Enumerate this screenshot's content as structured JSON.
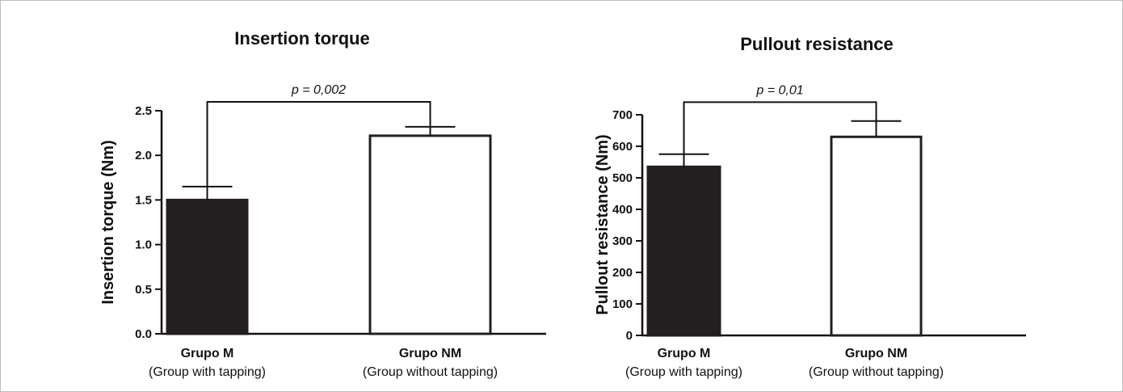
{
  "chart_data": [
    {
      "type": "bar",
      "title": "Insertion torque",
      "xlabel": "",
      "ylabel": "Insertion torque (Nm)",
      "ylim": [
        0,
        2.5
      ],
      "yticks": [
        "0.0",
        "0.5",
        "1.0",
        "1.5",
        "2.0",
        "2.5"
      ],
      "categories": [
        "Grupo M",
        "Grupo NM"
      ],
      "category_sublabels": [
        "(Group with tapping)",
        "(Group without tapping)"
      ],
      "values": [
        1.5,
        2.22
      ],
      "error_upper": [
        0.15,
        0.1
      ],
      "bar_colors": [
        "#231f20",
        "#ffffff"
      ],
      "significance": {
        "label": "p = 0,002",
        "level": 2.6
      },
      "grid": false
    },
    {
      "type": "bar",
      "title": "Pullout resistance",
      "xlabel": "",
      "ylabel": "Pullout resistance (Nm)",
      "ylim": [
        0,
        700
      ],
      "yticks": [
        "0",
        "100",
        "200",
        "300",
        "400",
        "500",
        "600",
        "700"
      ],
      "categories": [
        "Grupo M",
        "Grupo NM"
      ],
      "category_sublabels": [
        "(Group with tapping)",
        "(Group without tapping)"
      ],
      "values": [
        535,
        630
      ],
      "error_upper": [
        40,
        50
      ],
      "bar_colors": [
        "#231f20",
        "#ffffff"
      ],
      "significance": {
        "label": "p = 0,01",
        "level": 740
      },
      "grid": false
    }
  ]
}
